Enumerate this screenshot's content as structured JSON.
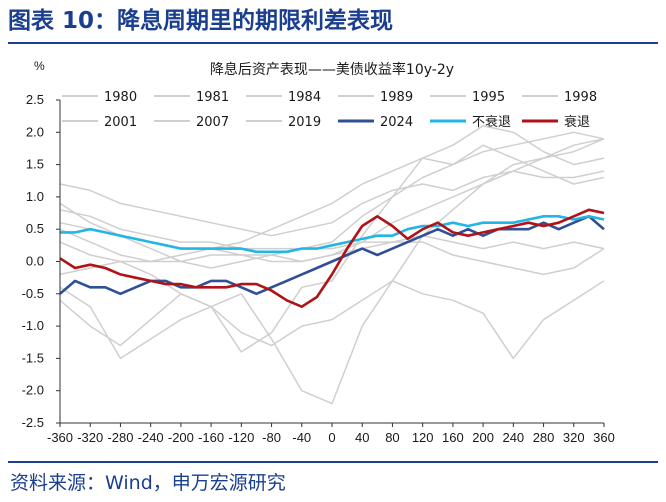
{
  "figure": {
    "title": "图表 10：降息周期里的期限利差表现",
    "source": "资料来源：Wind，申万宏源研究"
  },
  "colors": {
    "heading": "#1b3f8f",
    "grey": "#cfcfcf",
    "series_2024": "#2f4f96",
    "no_recession": "#22b5e6",
    "recession": "#b01218"
  },
  "chart_data": {
    "type": "line",
    "title": "降息后资产表现——美债收益率10y-2y",
    "ylabel": "%",
    "xlabel": "",
    "xlim": [
      -360,
      360
    ],
    "ylim": [
      -2.5,
      2.5
    ],
    "xticks": [
      -360,
      -320,
      -280,
      -240,
      -200,
      -160,
      -120,
      -80,
      -40,
      0,
      40,
      80,
      120,
      160,
      200,
      240,
      280,
      320,
      360
    ],
    "yticks": [
      -2.5,
      -2.0,
      -1.5,
      -1.0,
      -0.5,
      0.0,
      0.5,
      1.0,
      1.5,
      2.0,
      2.5
    ],
    "ytick_labels": [
      "-2.5",
      "-2.0",
      "-1.5",
      "-1.0",
      "-0.5",
      "0.0",
      "0.5",
      "1.0",
      "1.5",
      "2.0",
      "2.5"
    ],
    "grid": false,
    "legend": "top",
    "series": [
      {
        "name": "1980",
        "style": "grey",
        "x": [
          -360,
          -320,
          -280,
          -240,
          -200,
          -160,
          -120,
          -80,
          -40,
          0,
          40,
          80,
          120,
          160,
          200,
          240,
          280,
          320,
          360
        ],
        "values": [
          -0.6,
          -1.0,
          -1.3,
          -0.9,
          -0.5,
          -0.7,
          -1.4,
          -1.1,
          -0.4,
          -0.3,
          0.4,
          1.0,
          1.6,
          1.5,
          1.7,
          1.8,
          1.9,
          2.0,
          1.9
        ]
      },
      {
        "name": "1981",
        "style": "grey",
        "x": [
          -360,
          -320,
          -280,
          -240,
          -200,
          -160,
          -120,
          -80,
          -40,
          0,
          40,
          80,
          120,
          160,
          200,
          240,
          280,
          320,
          360
        ],
        "values": [
          -0.4,
          -0.7,
          -1.5,
          -1.2,
          -0.9,
          -0.7,
          -0.5,
          -1.2,
          -2.0,
          -2.2,
          -1.0,
          -0.3,
          0.4,
          0.8,
          1.2,
          1.4,
          1.6,
          1.7,
          1.9
        ]
      },
      {
        "name": "1984",
        "style": "grey",
        "x": [
          -360,
          -320,
          -280,
          -240,
          -200,
          -160,
          -120,
          -80,
          -40,
          0,
          40,
          80,
          120,
          160,
          200,
          240,
          280,
          320,
          360
        ],
        "values": [
          1.2,
          1.1,
          0.9,
          0.8,
          0.7,
          0.6,
          0.5,
          0.4,
          0.5,
          0.6,
          0.9,
          1.1,
          1.2,
          1.1,
          1.3,
          1.4,
          1.3,
          1.3,
          1.4
        ]
      },
      {
        "name": "1989",
        "style": "grey",
        "x": [
          -360,
          -320,
          -280,
          -240,
          -200,
          -160,
          -120,
          -80,
          -40,
          0,
          40,
          80,
          120,
          160,
          200,
          240,
          280,
          320,
          360
        ],
        "values": [
          0.9,
          0.6,
          0.4,
          0.2,
          0.0,
          -0.1,
          0.0,
          0.1,
          0.0,
          0.1,
          0.3,
          0.6,
          0.8,
          1.0,
          1.2,
          1.5,
          1.6,
          1.8,
          1.9
        ]
      },
      {
        "name": "1995",
        "style": "grey",
        "x": [
          -360,
          -320,
          -280,
          -240,
          -200,
          -160,
          -120,
          -80,
          -40,
          0,
          40,
          80,
          120,
          160,
          200,
          240,
          280,
          320,
          360
        ],
        "values": [
          0.8,
          0.7,
          0.5,
          0.4,
          0.3,
          0.3,
          0.2,
          0.2,
          0.2,
          0.2,
          0.3,
          0.3,
          0.4,
          0.3,
          0.2,
          0.3,
          0.2,
          0.3,
          0.2
        ]
      },
      {
        "name": "1998",
        "style": "grey",
        "x": [
          -360,
          -320,
          -280,
          -240,
          -200,
          -160,
          -120,
          -80,
          -40,
          0,
          40,
          80,
          120,
          160,
          200,
          240,
          280,
          320,
          360
        ],
        "values": [
          0.6,
          0.5,
          0.4,
          0.3,
          0.2,
          0.2,
          0.1,
          0.0,
          0.0,
          0.1,
          0.2,
          0.3,
          0.3,
          0.1,
          0.0,
          -0.1,
          -0.2,
          -0.1,
          0.2
        ]
      },
      {
        "name": "2001",
        "style": "grey",
        "x": [
          -360,
          -320,
          -280,
          -240,
          -200,
          -160,
          -120,
          -80,
          -40,
          0,
          40,
          80,
          120,
          160,
          200,
          240,
          280,
          320,
          360
        ],
        "values": [
          0.5,
          0.3,
          0.1,
          0.0,
          0.1,
          0.2,
          0.3,
          0.5,
          0.7,
          0.9,
          1.2,
          1.4,
          1.6,
          1.8,
          2.1,
          2.0,
          1.7,
          1.5,
          1.6
        ]
      },
      {
        "name": "2007",
        "style": "grey",
        "x": [
          -360,
          -320,
          -280,
          -240,
          -200,
          -160,
          -120,
          -80,
          -40,
          0,
          40,
          80,
          120,
          160,
          200,
          240,
          280,
          320,
          360
        ],
        "values": [
          -0.2,
          -0.1,
          0.0,
          0.0,
          0.0,
          0.1,
          0.1,
          0.1,
          0.2,
          0.3,
          0.7,
          1.0,
          1.3,
          1.5,
          1.8,
          1.6,
          1.4,
          1.2,
          1.3
        ]
      },
      {
        "name": "2019",
        "style": "grey",
        "x": [
          -360,
          -320,
          -280,
          -240,
          -200,
          -160,
          -120,
          -80,
          -40,
          0,
          40,
          80,
          120,
          160,
          200,
          240,
          280,
          320,
          360
        ],
        "values": [
          0.3,
          0.1,
          0.0,
          -0.2,
          -0.5,
          -0.7,
          -1.1,
          -1.3,
          -1.0,
          -0.9,
          -0.6,
          -0.3,
          -0.5,
          -0.6,
          -0.8,
          -1.5,
          -0.9,
          -0.6,
          -0.3
        ]
      },
      {
        "name": "2024",
        "style": "series_2024",
        "x": [
          -360,
          -340,
          -320,
          -300,
          -280,
          -260,
          -240,
          -220,
          -200,
          -180,
          -160,
          -140,
          -120,
          -100,
          -80,
          -60,
          -40,
          -20,
          0,
          20,
          40,
          60,
          80,
          100,
          120,
          140,
          160,
          180,
          200,
          220,
          240,
          260,
          280,
          300,
          320,
          340,
          360
        ],
        "values": [
          -0.5,
          -0.3,
          -0.4,
          -0.4,
          -0.5,
          -0.4,
          -0.3,
          -0.3,
          -0.4,
          -0.4,
          -0.3,
          -0.3,
          -0.4,
          -0.5,
          -0.4,
          -0.3,
          -0.2,
          -0.1,
          0.0,
          0.1,
          0.2,
          0.1,
          0.2,
          0.3,
          0.4,
          0.5,
          0.4,
          0.5,
          0.4,
          0.5,
          0.5,
          0.5,
          0.6,
          0.5,
          0.6,
          0.7,
          0.5
        ]
      },
      {
        "name": "不衰退",
        "style": "no_recession",
        "x": [
          -360,
          -340,
          -320,
          -300,
          -280,
          -260,
          -240,
          -220,
          -200,
          -180,
          -160,
          -140,
          -120,
          -100,
          -80,
          -60,
          -40,
          -20,
          0,
          20,
          40,
          60,
          80,
          100,
          120,
          140,
          160,
          180,
          200,
          220,
          240,
          260,
          280,
          300,
          320,
          340,
          360
        ],
        "values": [
          0.45,
          0.45,
          0.5,
          0.45,
          0.4,
          0.35,
          0.3,
          0.25,
          0.2,
          0.2,
          0.2,
          0.2,
          0.2,
          0.15,
          0.15,
          0.15,
          0.2,
          0.2,
          0.25,
          0.3,
          0.35,
          0.4,
          0.4,
          0.5,
          0.55,
          0.55,
          0.6,
          0.55,
          0.6,
          0.6,
          0.6,
          0.65,
          0.7,
          0.7,
          0.65,
          0.7,
          0.65
        ]
      },
      {
        "name": "衰退",
        "style": "recession",
        "x": [
          -360,
          -340,
          -320,
          -300,
          -280,
          -260,
          -240,
          -220,
          -200,
          -180,
          -160,
          -140,
          -120,
          -100,
          -80,
          -60,
          -40,
          -20,
          0,
          20,
          40,
          60,
          80,
          100,
          120,
          140,
          160,
          180,
          200,
          220,
          240,
          260,
          280,
          300,
          320,
          340,
          360
        ],
        "values": [
          0.05,
          -0.1,
          -0.05,
          -0.1,
          -0.2,
          -0.25,
          -0.3,
          -0.35,
          -0.35,
          -0.4,
          -0.4,
          -0.4,
          -0.35,
          -0.35,
          -0.45,
          -0.6,
          -0.7,
          -0.55,
          -0.2,
          0.2,
          0.55,
          0.7,
          0.55,
          0.35,
          0.5,
          0.6,
          0.45,
          0.4,
          0.45,
          0.5,
          0.55,
          0.6,
          0.55,
          0.6,
          0.7,
          0.8,
          0.75
        ]
      }
    ]
  }
}
